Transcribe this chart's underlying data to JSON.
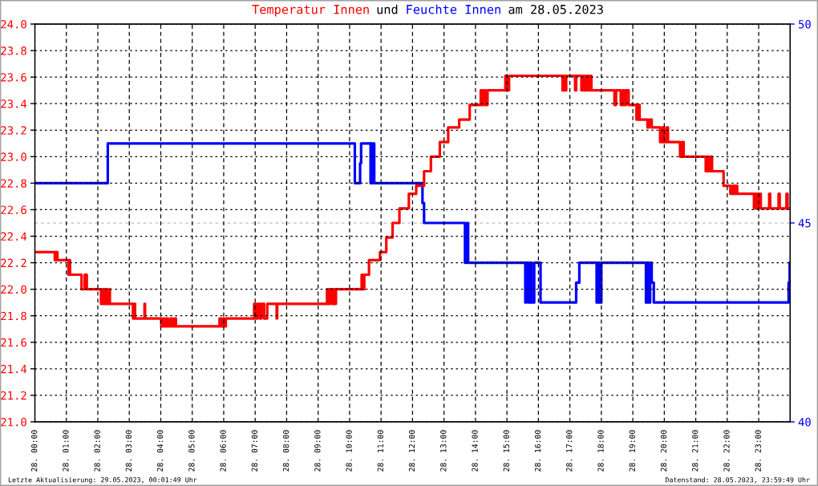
{
  "chart_data": {
    "type": "step",
    "legend": "top",
    "annotations": [
      "Letzte Aktualisierung: 29.05.2023, 00:01:49 Uhr",
      "Datenstand: 28.05.2023, 23:59:49 Uhr",
      "und",
      "am 28.05.2023"
    ],
    "xlim": [
      "2023-05-28T00:00",
      "2023-05-29T00:00"
    ],
    "xticks": [
      {
        "value": "2023-05-28T00:00",
        "label": "28. 00:00"
      },
      {
        "value": "2023-05-28T01:00",
        "label": "28. 01:00"
      },
      {
        "value": "2023-05-28T02:00",
        "label": "28. 02:00"
      },
      {
        "value": "2023-05-28T03:00",
        "label": "28. 03:00"
      },
      {
        "value": "2023-05-28T04:00",
        "label": "28. 04:00"
      },
      {
        "value": "2023-05-28T05:00",
        "label": "28. 05:00"
      },
      {
        "value": "2023-05-28T06:00",
        "label": "28. 06:00"
      },
      {
        "value": "2023-05-28T07:00",
        "label": "28. 07:00"
      },
      {
        "value": "2023-05-28T08:00",
        "label": "28. 08:00"
      },
      {
        "value": "2023-05-28T09:00",
        "label": "28. 09:00"
      },
      {
        "value": "2023-05-28T10:00",
        "label": "28. 10:00"
      },
      {
        "value": "2023-05-28T11:00",
        "label": "28. 11:00"
      },
      {
        "value": "2023-05-28T12:00",
        "label": "28. 12:00"
      },
      {
        "value": "2023-05-28T13:00",
        "label": "28. 13:00"
      },
      {
        "value": "2023-05-28T14:00",
        "label": "28. 14:00"
      },
      {
        "value": "2023-05-28T15:00",
        "label": "28. 15:00"
      },
      {
        "value": "2023-05-28T16:00",
        "label": "28. 16:00"
      },
      {
        "value": "2023-05-28T17:00",
        "label": "28. 17:00"
      },
      {
        "value": "2023-05-28T18:00",
        "label": "28. 18:00"
      },
      {
        "value": "2023-05-28T19:00",
        "label": "28. 19:00"
      },
      {
        "value": "2023-05-28T20:00",
        "label": "28. 20:00"
      },
      {
        "value": "2023-05-28T21:00",
        "label": "28. 21:00"
      },
      {
        "value": "2023-05-28T22:00",
        "label": "28. 22:00"
      },
      {
        "value": "2023-05-28T23:00",
        "label": "28. 23:00"
      }
    ],
    "ylim": [
      21,
      24
    ],
    "yticks": [
      {
        "value": 21,
        "label": "21.0"
      },
      21.2,
      21.4,
      21.6,
      21.8,
      {
        "value": 22,
        "label": "22.0"
      },
      22.2,
      22.4,
      22.6,
      22.8,
      {
        "value": 23,
        "label": "23.0"
      },
      23.2,
      23.4,
      23.6,
      23.8,
      {
        "value": 24,
        "label": "24.0"
      }
    ],
    "y2lim": [
      40,
      50
    ],
    "y2ticks": [
      40,
      45,
      50
    ],
    "grid": true,
    "ref_lines": [
      {
        "axis": "y2",
        "value": 45,
        "color": "#c0c0c0",
        "line_style": "dashed"
      }
    ],
    "series": [
      {
        "name": "Temperatur Innen",
        "color": "#ff0000",
        "x": [
          "2023-05-28T00:00",
          "2023-05-28T00:38",
          "2023-05-28T00:40",
          "2023-05-28T00:43",
          "2023-05-28T01:04",
          "2023-05-28T01:05",
          "2023-05-28T01:07",
          "2023-05-28T01:29",
          "2023-05-28T01:35",
          "2023-05-28T01:39",
          "2023-05-28T02:06",
          "2023-05-28T02:10",
          "2023-05-28T02:13",
          "2023-05-28T02:16",
          "2023-05-28T02:17",
          "2023-05-28T02:21",
          "2023-05-28T02:23",
          "2023-05-28T03:07",
          "2023-05-28T03:09",
          "2023-05-28T03:11",
          "2023-05-28T03:29",
          "2023-05-28T03:30",
          "2023-05-28T04:01",
          "2023-05-28T04:04",
          "2023-05-28T04:07",
          "2023-05-28T04:11",
          "2023-05-28T04:14",
          "2023-05-28T04:19",
          "2023-05-28T04:22",
          "2023-05-28T04:26",
          "2023-05-28T04:29",
          "2023-05-28T05:52",
          "2023-05-28T05:55",
          "2023-05-28T05:58",
          "2023-05-28T06:01",
          "2023-05-28T06:04",
          "2023-05-28T06:58",
          "2023-05-28T07:02",
          "2023-05-28T07:05",
          "2023-05-28T07:09",
          "2023-05-28T07:12",
          "2023-05-28T07:17",
          "2023-05-28T07:23",
          "2023-05-28T07:41",
          "2023-05-28T07:42",
          "2023-05-28T09:17",
          "2023-05-28T09:20",
          "2023-05-28T09:23",
          "2023-05-28T09:27",
          "2023-05-28T09:30",
          "2023-05-28T09:32",
          "2023-05-28T09:34",
          "2023-05-28T10:23",
          "2023-05-28T10:25",
          "2023-05-28T10:28",
          "2023-05-28T10:37",
          "2023-05-28T10:58",
          "2023-05-28T11:10",
          "2023-05-28T11:22",
          "2023-05-28T11:35",
          "2023-05-28T11:53",
          "2023-05-28T12:07",
          "2023-05-28T12:22",
          "2023-05-28T12:35",
          "2023-05-28T12:52",
          "2023-05-28T13:08",
          "2023-05-28T13:29",
          "2023-05-28T13:49",
          "2023-05-28T14:10",
          "2023-05-28T14:12",
          "2023-05-28T14:15",
          "2023-05-28T14:19",
          "2023-05-28T14:23",
          "2023-05-28T14:57",
          "2023-05-28T15:01",
          "2023-05-28T15:04",
          "2023-05-28T16:46",
          "2023-05-28T16:48",
          "2023-05-28T16:51",
          "2023-05-28T16:53",
          "2023-05-28T17:10",
          "2023-05-28T17:12",
          "2023-05-28T17:22",
          "2023-05-28T17:25",
          "2023-05-28T17:28",
          "2023-05-28T17:31",
          "2023-05-28T17:34",
          "2023-05-28T17:37",
          "2023-05-28T17:41",
          "2023-05-28T18:25",
          "2023-05-28T18:28",
          "2023-05-28T18:37",
          "2023-05-28T18:41",
          "2023-05-28T18:44",
          "2023-05-28T18:47",
          "2023-05-28T18:52",
          "2023-05-28T19:07",
          "2023-05-28T19:10",
          "2023-05-28T19:13",
          "2023-05-28T19:28",
          "2023-05-28T19:31",
          "2023-05-28T19:36",
          "2023-05-28T19:52",
          "2023-05-28T19:56",
          "2023-05-28T19:59",
          "2023-05-28T20:04",
          "2023-05-28T20:07",
          "2023-05-28T20:30",
          "2023-05-28T20:34",
          "2023-05-28T20:37",
          "2023-05-28T21:19",
          "2023-05-28T21:22",
          "2023-05-28T21:25",
          "2023-05-28T21:28",
          "2023-05-28T21:31",
          "2023-05-28T21:53",
          "2023-05-28T22:06",
          "2023-05-28T22:10",
          "2023-05-28T22:13",
          "2023-05-28T22:16",
          "2023-05-28T22:19",
          "2023-05-28T22:51",
          "2023-05-28T22:54",
          "2023-05-28T22:58",
          "2023-05-28T23:01",
          "2023-05-28T23:04",
          "2023-05-28T23:20",
          "2023-05-28T23:22",
          "2023-05-28T23:38",
          "2023-05-28T23:40",
          "2023-05-28T23:53",
          "2023-05-28T23:55",
          "2023-05-28T23:59"
        ],
        "values": [
          22.28,
          22.22,
          22.28,
          22.22,
          22.11,
          22.22,
          22.11,
          22.0,
          22.11,
          22.0,
          21.89,
          22.0,
          21.89,
          22.0,
          21.89,
          22.0,
          21.89,
          21.78,
          21.89,
          21.78,
          21.89,
          21.78,
          21.72,
          21.78,
          21.72,
          21.78,
          21.72,
          21.78,
          21.72,
          21.78,
          21.72,
          21.78,
          21.72,
          21.78,
          21.72,
          21.78,
          21.89,
          21.78,
          21.89,
          21.78,
          21.89,
          21.78,
          21.89,
          21.78,
          21.89,
          22.0,
          21.89,
          22.0,
          21.89,
          22.0,
          21.89,
          22.0,
          22.11,
          22.0,
          22.11,
          22.22,
          22.28,
          22.39,
          22.5,
          22.61,
          22.72,
          22.78,
          22.89,
          23.0,
          23.11,
          23.22,
          23.28,
          23.39,
          23.5,
          23.39,
          23.5,
          23.39,
          23.5,
          23.61,
          23.5,
          23.61,
          23.5,
          23.61,
          23.5,
          23.61,
          23.5,
          23.61,
          23.5,
          23.61,
          23.5,
          23.61,
          23.5,
          23.61,
          23.5,
          23.39,
          23.5,
          23.39,
          23.5,
          23.39,
          23.5,
          23.39,
          23.28,
          23.39,
          23.28,
          23.22,
          23.28,
          23.22,
          23.11,
          23.22,
          23.11,
          23.22,
          23.11,
          23.0,
          23.11,
          23.0,
          22.89,
          23.0,
          22.89,
          23.0,
          22.89,
          22.78,
          22.72,
          22.78,
          22.72,
          22.78,
          22.72,
          22.61,
          22.72,
          22.61,
          22.72,
          22.61,
          22.72,
          22.61,
          22.72,
          22.61,
          22.72,
          22.61,
          22.61
        ]
      },
      {
        "name": "Feuchte Innen",
        "color": "#0000ff",
        "axis": "y2",
        "x": [
          "2023-05-28T00:00",
          "2023-05-28T02:19",
          "2023-05-28T10:10",
          "2023-05-28T10:20",
          "2023-05-28T10:22",
          "2023-05-28T10:40",
          "2023-05-28T10:41",
          "2023-05-28T10:44",
          "2023-05-28T10:46",
          "2023-05-28T10:47",
          "2023-05-28T12:19",
          "2023-05-28T12:22",
          "2023-05-28T13:40",
          "2023-05-28T13:43",
          "2023-05-28T13:46",
          "2023-05-28T15:35",
          "2023-05-28T15:37",
          "2023-05-28T15:41",
          "2023-05-28T15:44",
          "2023-05-28T15:47",
          "2023-05-28T15:52",
          "2023-05-28T16:04",
          "2023-05-28T17:12",
          "2023-05-28T17:18",
          "2023-05-28T17:51",
          "2023-05-28T17:54",
          "2023-05-28T17:57",
          "2023-05-28T18:00",
          "2023-05-28T19:25",
          "2023-05-28T19:27",
          "2023-05-28T19:30",
          "2023-05-28T19:33",
          "2023-05-28T19:36",
          "2023-05-28T19:40",
          "2023-05-28T23:57",
          "2023-05-28T23:59"
        ],
        "values": [
          46,
          47,
          46,
          46.5,
          47,
          46,
          47,
          46,
          47,
          46,
          45.5,
          45,
          44,
          45,
          44,
          43,
          44,
          43,
          44,
          43,
          44,
          43,
          43.5,
          44,
          43,
          44,
          43,
          44,
          43,
          44,
          43,
          44,
          43.5,
          43,
          43.5,
          44
        ]
      }
    ]
  }
}
